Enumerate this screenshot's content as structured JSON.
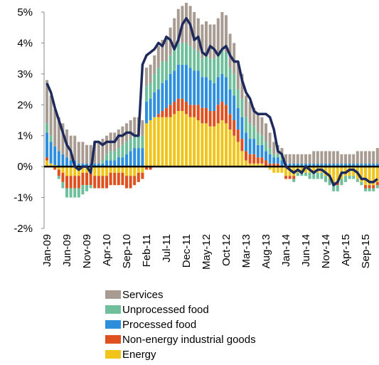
{
  "chart_data": {
    "type": "stacked-bar-line",
    "categories": [
      "Jan-09",
      null,
      null,
      null,
      null,
      "Jun-09",
      null,
      null,
      null,
      null,
      "Nov-09",
      null,
      null,
      null,
      null,
      "Apr-10",
      null,
      null,
      null,
      null,
      "Sep-10",
      null,
      null,
      null,
      null,
      "Feb-11",
      null,
      null,
      null,
      null,
      "Jul-11",
      null,
      null,
      null,
      null,
      "Dec-11",
      null,
      null,
      null,
      null,
      "May-12",
      null,
      null,
      null,
      null,
      "Oct-12",
      null,
      null,
      null,
      null,
      "Mar-13",
      null,
      null,
      null,
      null,
      "Aug-13",
      null,
      null,
      null,
      null,
      "Jan-14",
      null,
      null,
      null,
      null,
      "Jun-14",
      null,
      null,
      null,
      null,
      "Nov-14",
      null,
      null,
      null,
      null,
      "Apr-15",
      null,
      null,
      null,
      null,
      "Sep-15",
      null,
      null,
      null
    ],
    "series": [
      {
        "name": "Energy",
        "color": "#f0c419",
        "values": [
          0.2,
          0.1,
          0.05,
          -0.1,
          -0.2,
          -0.3,
          -0.3,
          -0.3,
          -0.3,
          -0.2,
          -0.2,
          -0.2,
          -0.3,
          -0.3,
          -0.3,
          -0.3,
          -0.2,
          -0.2,
          -0.2,
          -0.2,
          -0.3,
          -0.3,
          -0.3,
          -0.2,
          -0.2,
          1.4,
          1.5,
          1.6,
          1.6,
          1.6,
          1.6,
          1.6,
          1.7,
          1.8,
          1.8,
          1.7,
          1.6,
          1.6,
          1.5,
          1.4,
          1.4,
          1.3,
          1.3,
          1.4,
          1.5,
          1.4,
          1.2,
          1.0,
          0.8,
          0.5,
          0.2,
          0.1,
          0.1,
          0.1,
          0.1,
          0.0,
          -0.1,
          -0.2,
          -0.2,
          -0.2,
          -0.3,
          -0.3,
          -0.3,
          -0.2,
          -0.2,
          -0.2,
          -0.2,
          -0.2,
          -0.2,
          -0.2,
          -0.3,
          -0.4,
          -0.5,
          -0.5,
          -0.4,
          -0.3,
          -0.3,
          -0.3,
          -0.4,
          -0.5,
          -0.6,
          -0.6,
          -0.6,
          -0.5
        ]
      },
      {
        "name": "Non-energy industrial goods",
        "color": "#e0501e",
        "values": [
          0.1,
          0.0,
          -0.1,
          -0.2,
          -0.3,
          -0.4,
          -0.4,
          -0.4,
          -0.4,
          -0.4,
          -0.4,
          -0.4,
          -0.4,
          -0.4,
          -0.4,
          -0.4,
          -0.4,
          -0.4,
          -0.4,
          -0.4,
          -0.4,
          -0.4,
          -0.3,
          -0.3,
          -0.2,
          -0.1,
          -0.1,
          0.0,
          0.1,
          0.2,
          0.3,
          0.4,
          0.4,
          0.4,
          0.4,
          0.4,
          0.4,
          0.4,
          0.5,
          0.5,
          0.5,
          0.5,
          0.5,
          0.6,
          0.6,
          0.6,
          0.5,
          0.5,
          0.4,
          0.4,
          0.3,
          0.3,
          0.3,
          0.2,
          0.2,
          0.2,
          0.1,
          0.1,
          0.1,
          0.0,
          -0.1,
          -0.1,
          -0.1,
          0.0,
          0.0,
          0.0,
          0.0,
          0.0,
          0.0,
          0.0,
          0.0,
          0.0,
          -0.1,
          -0.1,
          0.0,
          0.0,
          0.0,
          0.0,
          0.0,
          0.0,
          -0.1,
          -0.1,
          -0.1,
          -0.1
        ]
      },
      {
        "name": "Processed food",
        "color": "#2e8fdc",
        "values": [
          0.8,
          0.7,
          0.6,
          0.5,
          0.4,
          0.3,
          0.2,
          0.2,
          0.1,
          0.1,
          0.1,
          0.1,
          0.1,
          0.1,
          0.1,
          0.2,
          0.2,
          0.2,
          0.3,
          0.3,
          0.4,
          0.5,
          0.6,
          0.6,
          0.6,
          0.7,
          0.7,
          0.8,
          0.8,
          0.9,
          0.9,
          1.0,
          1.0,
          1.1,
          1.1,
          1.2,
          1.2,
          1.1,
          1.1,
          1.0,
          1.0,
          1.0,
          0.9,
          0.9,
          0.9,
          0.9,
          0.8,
          0.8,
          0.7,
          0.7,
          0.6,
          0.5,
          0.5,
          0.4,
          0.4,
          0.3,
          0.3,
          0.2,
          0.2,
          0.2,
          0.1,
          0.1,
          0.1,
          0.1,
          0.1,
          0.1,
          0.1,
          0.1,
          0.1,
          0.1,
          0.1,
          0.1,
          0.1,
          0.1,
          0.1,
          0.1,
          0.1,
          0.1,
          0.1,
          0.1,
          0.1,
          0.1,
          0.1,
          0.1
        ]
      },
      {
        "name": "Unprocessed food",
        "color": "#6fbf9c",
        "values": [
          0.3,
          0.2,
          0.0,
          -0.1,
          -0.2,
          -0.3,
          -0.3,
          -0.3,
          -0.3,
          -0.3,
          -0.2,
          -0.1,
          0.0,
          0.0,
          0.1,
          0.2,
          0.3,
          0.3,
          0.3,
          0.4,
          0.4,
          0.4,
          0.4,
          0.4,
          0.4,
          0.5,
          0.5,
          0.6,
          0.7,
          0.7,
          0.6,
          0.6,
          0.7,
          0.7,
          0.7,
          0.7,
          0.7,
          0.7,
          0.6,
          0.6,
          0.7,
          0.7,
          0.8,
          0.8,
          0.8,
          0.8,
          0.7,
          0.7,
          0.6,
          0.6,
          0.5,
          0.5,
          0.4,
          0.4,
          0.3,
          0.3,
          0.2,
          0.1,
          0.1,
          0.1,
          0.0,
          0.0,
          -0.1,
          -0.1,
          -0.1,
          -0.1,
          -0.2,
          -0.2,
          -0.2,
          -0.2,
          -0.2,
          -0.2,
          -0.2,
          -0.2,
          -0.2,
          -0.2,
          -0.1,
          -0.1,
          -0.1,
          -0.1,
          -0.1,
          -0.1,
          -0.1,
          -0.1
        ]
      },
      {
        "name": "Services",
        "color": "#a89c92",
        "values": [
          1.4,
          1.3,
          1.2,
          1.1,
          1.0,
          0.9,
          0.8,
          0.8,
          0.7,
          0.7,
          0.6,
          0.6,
          0.7,
          0.7,
          0.7,
          0.6,
          0.6,
          0.6,
          0.6,
          0.6,
          0.6,
          0.6,
          0.6,
          0.6,
          0.5,
          0.6,
          0.6,
          0.6,
          0.7,
          0.7,
          0.8,
          0.9,
          1.0,
          1.1,
          1.2,
          1.3,
          1.3,
          1.2,
          1.1,
          1.1,
          1.1,
          1.1,
          1.1,
          1.1,
          1.2,
          1.2,
          1.1,
          1.0,
          0.9,
          0.8,
          0.7,
          0.7,
          0.6,
          0.6,
          0.6,
          0.6,
          0.5,
          0.4,
          0.3,
          0.3,
          0.3,
          0.3,
          0.3,
          0.3,
          0.3,
          0.3,
          0.3,
          0.4,
          0.4,
          0.4,
          0.4,
          0.4,
          0.4,
          0.4,
          0.3,
          0.3,
          0.3,
          0.3,
          0.4,
          0.4,
          0.4,
          0.4,
          0.4,
          0.5
        ]
      }
    ],
    "line": {
      "color": "#1f2a5c",
      "values": [
        2.7,
        2.4,
        1.9,
        1.5,
        1.1,
        0.7,
        0.5,
        0.0,
        -0.1,
        0.0,
        0.0,
        -0.2,
        0.8,
        0.8,
        0.7,
        0.8,
        0.8,
        0.8,
        1.0,
        1.0,
        1.1,
        1.1,
        1.0,
        1.0,
        3.3,
        3.6,
        3.7,
        3.8,
        4.0,
        3.9,
        4.2,
        4.1,
        3.8,
        4.1,
        4.6,
        4.8,
        4.6,
        4.1,
        4.2,
        3.7,
        3.6,
        3.9,
        3.8,
        3.6,
        3.8,
        3.9,
        3.6,
        3.4,
        3.4,
        2.8,
        2.4,
        2.2,
        1.8,
        1.7,
        1.7,
        1.7,
        1.6,
        1.2,
        0.5,
        0.4,
        0.0,
        -0.1,
        -0.2,
        -0.1,
        -0.2,
        0.0,
        -0.1,
        -0.2,
        -0.1,
        -0.1,
        -0.2,
        -0.3,
        -0.6,
        -0.5,
        -0.2,
        -0.2,
        -0.1,
        -0.1,
        -0.2,
        -0.4,
        -0.4,
        -0.5,
        -0.5,
        -0.4
      ]
    },
    "ylim": [
      -2,
      5
    ],
    "yticks": [
      {
        "value": -2,
        "label": "-2%"
      },
      {
        "value": -1,
        "label": "-1%"
      },
      {
        "value": 0,
        "label": "0%"
      },
      {
        "value": 1,
        "label": "1%"
      },
      {
        "value": 2,
        "label": "2%"
      },
      {
        "value": 3,
        "label": "3%"
      },
      {
        "value": 4,
        "label": "4%"
      },
      {
        "value": 5,
        "label": "5%"
      }
    ]
  }
}
